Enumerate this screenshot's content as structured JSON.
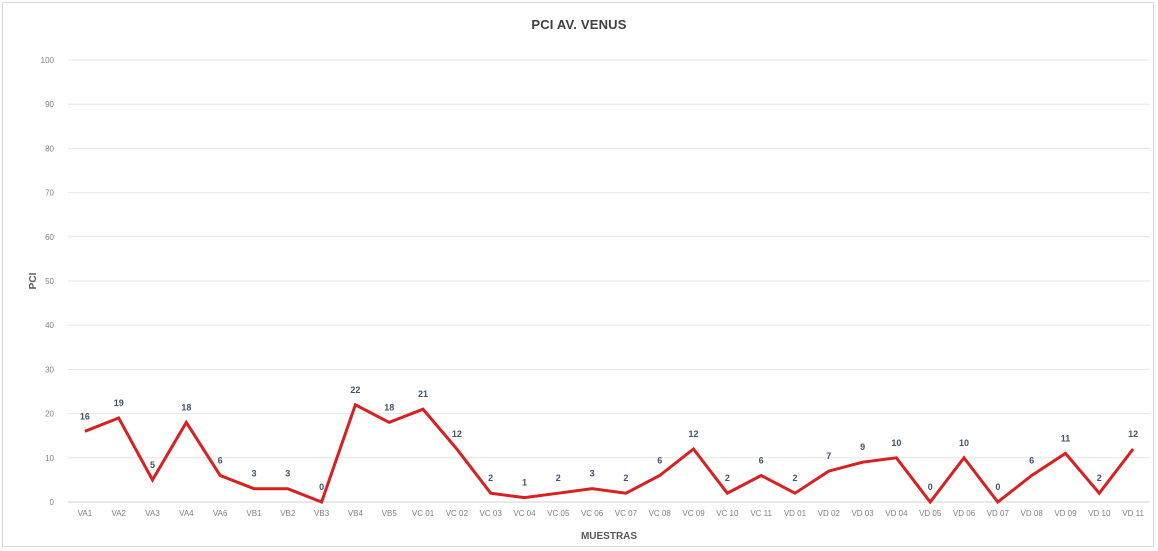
{
  "chart_data": {
    "type": "line",
    "title": "PCI  AV. VENUS",
    "xlabel": "MUESTRAS",
    "ylabel": "PCI",
    "ylim": [
      0,
      100
    ],
    "yticks": [
      0,
      10,
      20,
      30,
      40,
      50,
      60,
      70,
      80,
      90,
      100
    ],
    "grid": true,
    "categories": [
      "VA1",
      "VA2",
      "VA3",
      "VA4",
      "VA6",
      "VB1",
      "VB2",
      "VB3",
      "VB4",
      "VB5",
      "VC 01",
      "VC 02",
      "VC 03",
      "VC 04",
      "VC 05",
      "VC 06",
      "VC 07",
      "VC 08",
      "VC 09",
      "VC 10",
      "VC 11",
      "VD 01",
      "VD 02",
      "VD 03",
      "VD 04",
      "VD 05",
      "VD 06",
      "VD 07",
      "VD 08",
      "VD 09",
      "VD 10",
      "VD 11"
    ],
    "series": [
      {
        "color": "#d92020",
        "values": [
          16,
          19,
          5,
          18,
          6,
          3,
          3,
          0,
          22,
          18,
          21,
          12,
          2,
          1,
          2,
          3,
          2,
          6,
          12,
          2,
          6,
          2,
          7,
          9,
          10,
          0,
          10,
          0,
          6,
          11,
          2,
          12
        ]
      }
    ]
  }
}
